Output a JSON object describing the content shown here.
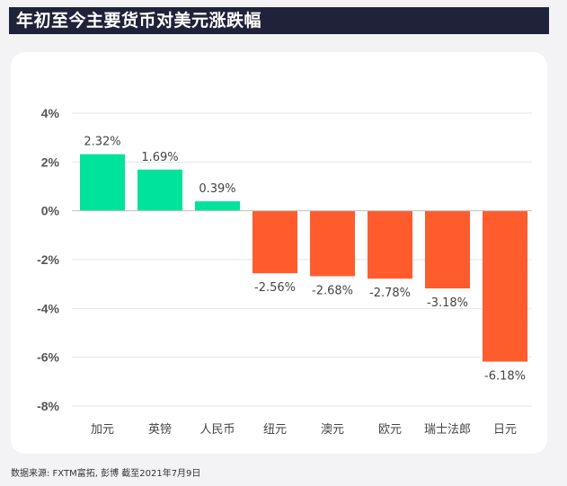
{
  "header": {
    "title": "年初至今主要货币对美元涨跌幅"
  },
  "footer": {
    "source": "数据来源: FXTM富拓, 彭博 截至2021年7月9日"
  },
  "colors": {
    "positive": "#00e39c",
    "negative": "#ff5c2e",
    "grid": "#e6e6e6",
    "zero_line": "#bfbfbf"
  },
  "chart_data": {
    "type": "bar",
    "title": "年初至今主要货币对美元涨跌幅",
    "categories": [
      "加元",
      "英镑",
      "人民币",
      "纽元",
      "澳元",
      "欧元",
      "瑞士法郎",
      "日元"
    ],
    "values": [
      2.32,
      1.69,
      0.39,
      -2.56,
      -2.68,
      -2.78,
      -3.18,
      -6.18
    ],
    "value_labels": [
      "2.32%",
      "1.69%",
      "0.39%",
      "-2.56%",
      "-2.68%",
      "-2.78%",
      "-3.18%",
      "-6.18%"
    ],
    "yticks": [
      4,
      2,
      0,
      -2,
      -4,
      -6,
      -8
    ],
    "ytick_labels": [
      "4%",
      "2%",
      "0%",
      "-2%",
      "-4%",
      "-6%",
      "-8%"
    ],
    "ylim": [
      -8,
      4
    ],
    "grid": true,
    "legend": "none"
  }
}
